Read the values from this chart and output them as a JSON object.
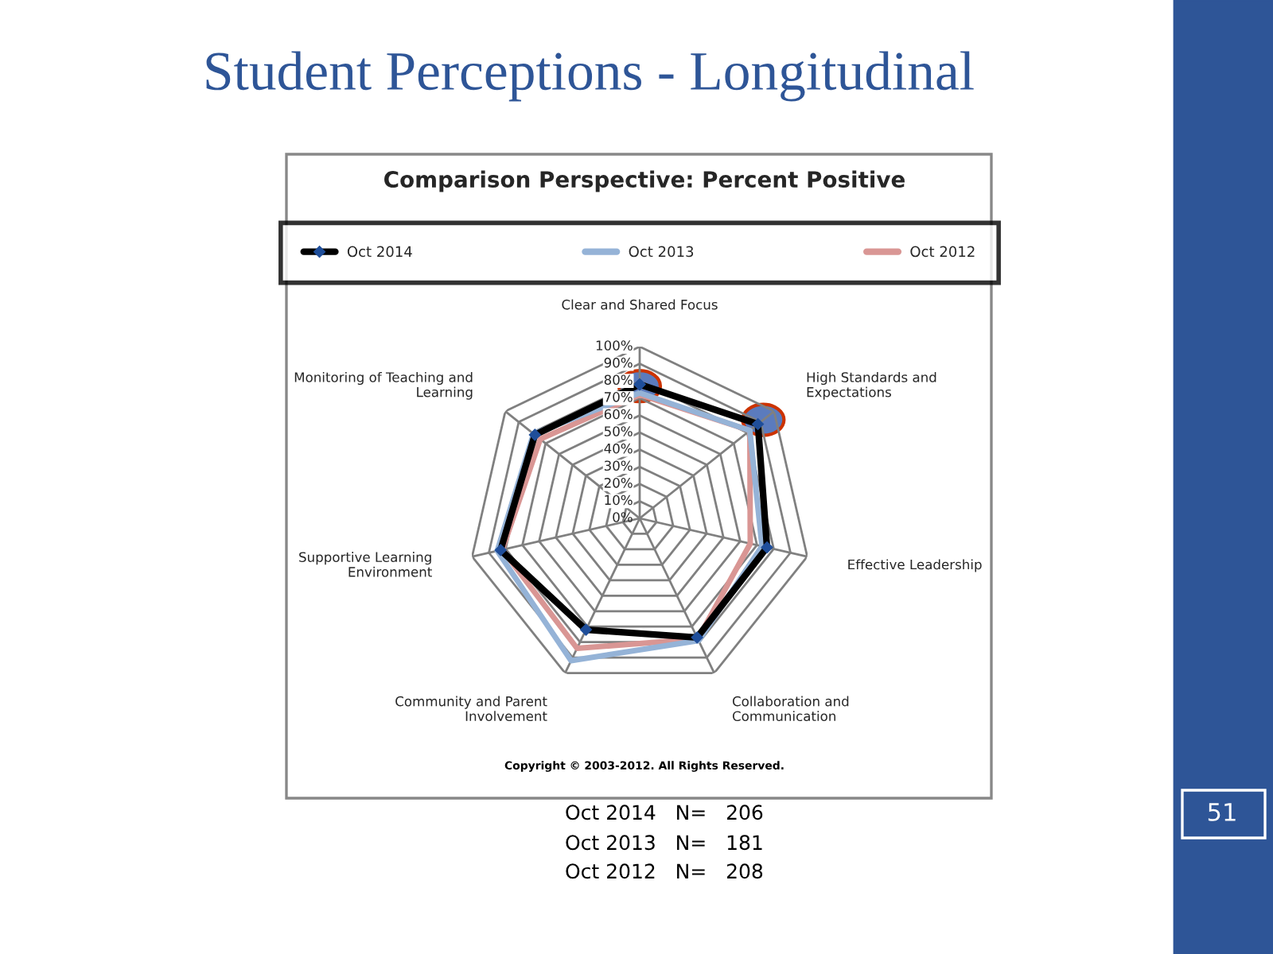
{
  "chart_data": {
    "type": "radar",
    "title": "Student Perceptions - Longitudinal",
    "subtitle": "Comparison Perspective: Percent Positive",
    "categories": [
      "Clear and Shared Focus",
      "High Standards and\nExpectations",
      "Effective Leadership",
      "Collaboration and\nCommunication",
      "Community and Parent\nInvolvement",
      "Supportive Learning\nEnvironment",
      "Monitoring of Teaching and\nLearning"
    ],
    "series": [
      {
        "name": "Oct 2014",
        "color": "#000000",
        "marker": "diamond",
        "values": [
          78,
          88,
          76,
          77,
          72,
          83,
          78
        ]
      },
      {
        "name": "Oct 2013",
        "color": "#95b3d7",
        "values": [
          73,
          82,
          73,
          79,
          92,
          85,
          79
        ]
      },
      {
        "name": "Oct 2012",
        "color": "#d99694",
        "values": [
          72,
          82,
          66,
          78,
          84,
          82,
          74
        ]
      }
    ],
    "ylim": [
      0,
      100
    ],
    "yticks": [
      {
        "value": 0,
        "label": "0%"
      },
      {
        "value": 10,
        "label": "10%"
      },
      {
        "value": 20,
        "label": "20%"
      },
      {
        "value": 30,
        "label": "30%"
      },
      {
        "value": 40,
        "label": "40%"
      },
      {
        "value": 50,
        "label": "50%"
      },
      {
        "value": 60,
        "label": "60%"
      },
      {
        "value": 70,
        "label": "70%"
      },
      {
        "value": 80,
        "label": "80%"
      },
      {
        "value": 90,
        "label": "90%"
      },
      {
        "value": 100,
        "label": "100%"
      }
    ],
    "grid": true,
    "legend": "top",
    "annotations": [
      "Copyright © 2003-2012. All Rights Reserved.",
      "Oct 2014   N=   206",
      "Oct 2013   N=   181",
      "Oct 2012   N=   208",
      "51"
    ]
  }
}
